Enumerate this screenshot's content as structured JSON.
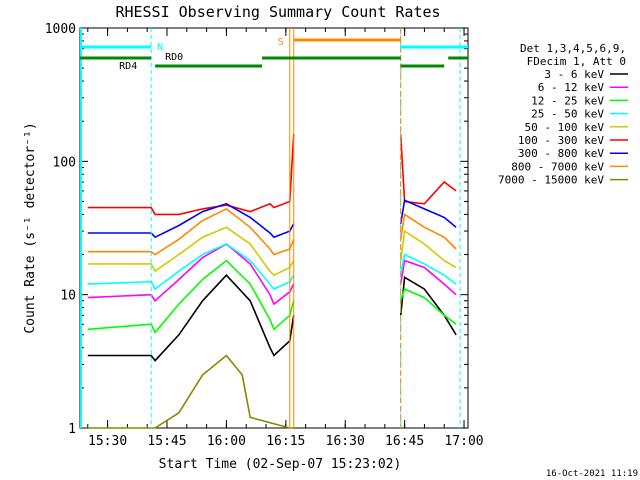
{
  "chart_data": {
    "type": "line",
    "title": "RHESSI Observing Summary Count Rates",
    "xlabel": "Start Time (02-Sep-07 15:23:02)",
    "ylabel": "Count Rate (s⁻¹ detector⁻¹)",
    "yscale": "log",
    "ylim": [
      1,
      1000
    ],
    "xlim": [
      "15:23:02",
      "17:01:00"
    ],
    "x_ticks": [
      "15:30",
      "15:45",
      "16:00",
      "16:15",
      "16:30",
      "16:45",
      "17:00"
    ],
    "y_ticks": [
      "1",
      "10",
      "100",
      "1000"
    ],
    "footer_date": "16-Oct-2021 11:19",
    "legend_header": [
      "Det 1,3,4,5,6,9,",
      "FDecim 1, Att 0"
    ],
    "legend_position": "right",
    "series": [
      {
        "name": "3 - 6 keV",
        "color": "#000000",
        "x": [
          "15:25",
          "15:41",
          "15:42",
          "15:48",
          "15:54",
          "16:00",
          "16:06",
          "16:11",
          "16:12",
          "16:16",
          "16:17",
          "16:44",
          "16:45",
          "16:50",
          "16:55",
          "16:58"
        ],
        "values": [
          3.5,
          3.5,
          3.2,
          5.0,
          9.0,
          14.0,
          9.0,
          4.0,
          3.5,
          4.5,
          7.0,
          7.0,
          13.5,
          11.0,
          7.0,
          5.0
        ]
      },
      {
        "name": "6 - 12 keV",
        "color": "#ff00ff",
        "x": [
          "15:25",
          "15:41",
          "15:42",
          "15:48",
          "15:54",
          "16:00",
          "16:06",
          "16:11",
          "16:12",
          "16:16",
          "16:17",
          "16:44",
          "16:45",
          "16:50",
          "16:55",
          "16:58"
        ],
        "values": [
          9.5,
          10.0,
          9.0,
          13.0,
          19.0,
          24.0,
          17.0,
          10.0,
          8.5,
          10.5,
          12.0,
          12.0,
          18.0,
          16.0,
          12.0,
          10.0
        ]
      },
      {
        "name": "12 - 25 keV",
        "color": "#00ff00",
        "x": [
          "15:25",
          "15:41",
          "15:42",
          "15:48",
          "15:54",
          "16:00",
          "16:06",
          "16:11",
          "16:12",
          "16:16",
          "16:17",
          "16:44",
          "16:45",
          "16:50",
          "16:55",
          "16:58"
        ],
        "values": [
          5.5,
          6.0,
          5.2,
          8.5,
          13.0,
          18.0,
          12.0,
          6.5,
          5.5,
          7.0,
          9.0,
          9.0,
          11.0,
          9.5,
          7.0,
          6.0
        ]
      },
      {
        "name": "25 - 50 keV",
        "color": "#00ffff",
        "x": [
          "15:25",
          "15:41",
          "15:42",
          "15:48",
          "15:54",
          "16:00",
          "16:06",
          "16:11",
          "16:12",
          "16:16",
          "16:17",
          "16:44",
          "16:45",
          "16:50",
          "16:55",
          "16:58"
        ],
        "values": [
          12.0,
          12.5,
          11.0,
          15.0,
          20.0,
          24.0,
          18.0,
          12.0,
          11.0,
          12.5,
          14.0,
          14.0,
          20.0,
          17.0,
          14.0,
          12.0
        ]
      },
      {
        "name": "50 - 100 keV",
        "color": "#cccc00",
        "x": [
          "15:25",
          "15:41",
          "15:42",
          "15:48",
          "15:54",
          "16:00",
          "16:06",
          "16:11",
          "16:12",
          "16:16",
          "16:17",
          "16:44",
          "16:45",
          "16:50",
          "16:55",
          "16:58"
        ],
        "values": [
          17.0,
          17.0,
          15.0,
          20.0,
          27.0,
          32.0,
          24.0,
          15.0,
          14.0,
          16.0,
          18.0,
          18.0,
          30.0,
          24.0,
          18.0,
          16.0
        ]
      },
      {
        "name": "100 - 300 keV",
        "color": "#ff0000",
        "x": [
          "15:25",
          "15:41",
          "15:42",
          "15:48",
          "15:54",
          "16:00",
          "16:06",
          "16:11",
          "16:12",
          "16:16",
          "16:17",
          "16:44",
          "16:45",
          "16:50",
          "16:55",
          "16:58"
        ],
        "values": [
          45.0,
          45.0,
          40.0,
          40.0,
          44.0,
          47.0,
          42.0,
          48.0,
          45.0,
          50.0,
          160.0,
          160.0,
          50.0,
          48.0,
          70.0,
          60.0
        ]
      },
      {
        "name": "300 - 800 keV",
        "color": "#0000ff",
        "x": [
          "15:25",
          "15:41",
          "15:42",
          "15:48",
          "15:54",
          "16:00",
          "16:06",
          "16:11",
          "16:12",
          "16:16",
          "16:17",
          "16:44",
          "16:45",
          "16:50",
          "16:55",
          "16:58"
        ],
        "values": [
          29.0,
          29.0,
          27.0,
          33.0,
          42.0,
          48.0,
          38.0,
          29.0,
          27.0,
          30.0,
          34.0,
          34.0,
          51.0,
          44.0,
          38.0,
          32.0
        ]
      },
      {
        "name": "800 - 7000 keV",
        "color": "#ff8800",
        "x": [
          "15:25",
          "15:41",
          "15:42",
          "15:48",
          "15:54",
          "16:00",
          "16:06",
          "16:11",
          "16:12",
          "16:16",
          "16:17",
          "16:44",
          "16:45",
          "16:50",
          "16:55",
          "16:58"
        ],
        "values": [
          21.0,
          21.0,
          20.0,
          26.0,
          36.0,
          44.0,
          32.0,
          22.0,
          20.0,
          22.0,
          26.0,
          26.0,
          40.0,
          32.0,
          27.0,
          22.0
        ]
      },
      {
        "name": "7000 - 15000 keV",
        "color": "#888800",
        "x": [
          "15:25",
          "15:30",
          "15:34",
          "15:41",
          "15:42",
          "15:48",
          "15:54",
          "16:00",
          "16:04",
          "16:06",
          "16:16",
          "16:17"
        ],
        "values": [
          1.0,
          1.0,
          1.0,
          1.0,
          1.0,
          1.3,
          2.5,
          3.5,
          2.5,
          1.2,
          1.0,
          1.0
        ]
      }
    ],
    "annotations": [
      {
        "label": "N",
        "color": "#00ffff"
      },
      {
        "label": "RD0",
        "color": "#000000"
      },
      {
        "label": "RD4",
        "color": "#000000"
      },
      {
        "label": "S",
        "color": "#ff8800"
      }
    ]
  }
}
